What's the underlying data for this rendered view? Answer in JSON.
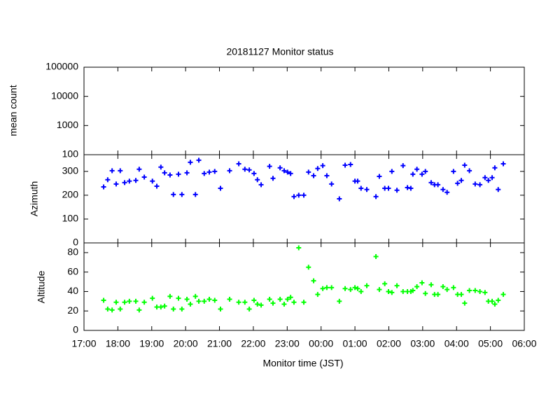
{
  "chart_data": [
    {
      "type": "scatter",
      "title": "20181127 Monitor status",
      "ylabel": "mean count",
      "log": true,
      "ylim": [
        100,
        100000
      ],
      "yticks": [
        100,
        1000,
        10000,
        100000
      ]
    },
    {
      "type": "scatter",
      "ylabel": "Azimuth",
      "color": "#0000ff",
      "ylim": [
        0,
        370
      ],
      "yticks": [
        0,
        100,
        200,
        300
      ],
      "x": [
        17.58,
        17.7,
        17.83,
        17.95,
        18.07,
        18.2,
        18.34,
        18.53,
        18.63,
        18.78,
        19.02,
        19.15,
        19.27,
        19.38,
        19.54,
        19.64,
        19.79,
        19.89,
        20.04,
        20.14,
        20.29,
        20.39,
        20.55,
        20.7,
        20.86,
        21.03,
        21.3,
        21.57,
        21.75,
        21.88,
        22.02,
        22.12,
        22.23,
        22.48,
        22.58,
        22.79,
        22.91,
        23.01,
        23.1,
        23.2,
        23.34,
        23.49,
        23.63,
        23.78,
        23.9,
        24.05,
        24.17,
        24.31,
        24.54,
        24.71,
        24.87,
        25.0,
        25.08,
        25.18,
        25.35,
        25.62,
        25.72,
        25.88,
        25.99,
        26.09,
        26.24,
        26.42,
        26.55,
        26.65,
        26.71,
        26.83,
        26.98,
        27.08,
        27.25,
        27.35,
        27.45,
        27.6,
        27.72,
        27.91,
        28.03,
        28.14,
        28.24,
        28.38,
        28.55,
        28.69,
        28.84,
        28.94,
        29.05,
        29.13,
        29.23,
        29.38
      ],
      "values": [
        235,
        265,
        303,
        247,
        303,
        253,
        259,
        262,
        309,
        276,
        259,
        238,
        318,
        294,
        285,
        203,
        288,
        203,
        294,
        338,
        203,
        347,
        291,
        297,
        300,
        229,
        303,
        332,
        309,
        306,
        291,
        265,
        244,
        321,
        271,
        315,
        303,
        297,
        291,
        194,
        200,
        200,
        297,
        282,
        312,
        324,
        282,
        247,
        185,
        326,
        329,
        259,
        259,
        229,
        224,
        194,
        279,
        229,
        229,
        300,
        221,
        324,
        232,
        229,
        288,
        309,
        288,
        300,
        253,
        244,
        244,
        224,
        212,
        300,
        250,
        262,
        326,
        303,
        247,
        244,
        274,
        262,
        274,
        315,
        224,
        332
      ]
    },
    {
      "type": "scatter",
      "ylabel": "Altitude",
      "color": "#00ff00",
      "ylim": [
        0,
        90
      ],
      "yticks": [
        0,
        20,
        40,
        60,
        80
      ],
      "xlabel": "Monitor time (JST)",
      "xlim": [
        17,
        30
      ],
      "xticks": [
        {
          "value": 17,
          "label": "17:00"
        },
        {
          "value": 18,
          "label": "18:00"
        },
        {
          "value": 19,
          "label": "19:00"
        },
        {
          "value": 20,
          "label": "20:00"
        },
        {
          "value": 21,
          "label": "21:00"
        },
        {
          "value": 22,
          "label": "22:00"
        },
        {
          "value": 23,
          "label": "23:00"
        },
        {
          "value": 24,
          "label": "00:00"
        },
        {
          "value": 25,
          "label": "01:00"
        },
        {
          "value": 26,
          "label": "02:00"
        },
        {
          "value": 27,
          "label": "03:00"
        },
        {
          "value": 28,
          "label": "04:00"
        },
        {
          "value": 29,
          "label": "05:00"
        },
        {
          "value": 30,
          "label": "06:00"
        }
      ],
      "x": [
        17.58,
        17.7,
        17.83,
        17.95,
        18.07,
        18.2,
        18.34,
        18.53,
        18.63,
        18.78,
        19.02,
        19.15,
        19.27,
        19.38,
        19.54,
        19.64,
        19.79,
        19.89,
        20.04,
        20.14,
        20.29,
        20.39,
        20.55,
        20.7,
        20.86,
        21.03,
        21.3,
        21.57,
        21.75,
        21.88,
        22.02,
        22.12,
        22.23,
        22.48,
        22.58,
        22.79,
        22.91,
        23.01,
        23.1,
        23.2,
        23.34,
        23.49,
        23.63,
        23.78,
        23.9,
        24.05,
        24.17,
        24.31,
        24.54,
        24.71,
        24.87,
        25.0,
        25.08,
        25.18,
        25.35,
        25.62,
        25.72,
        25.88,
        25.99,
        26.09,
        26.24,
        26.42,
        26.55,
        26.65,
        26.71,
        26.83,
        26.98,
        27.08,
        27.25,
        27.35,
        27.45,
        27.6,
        27.72,
        27.91,
        28.03,
        28.14,
        28.24,
        28.38,
        28.55,
        28.69,
        28.84,
        28.94,
        29.05,
        29.13,
        29.23,
        29.38
      ],
      "values": [
        31,
        22,
        21,
        29,
        22,
        29,
        30,
        30,
        21,
        29,
        33,
        24,
        24,
        25,
        35,
        22,
        33,
        22,
        32,
        27,
        35,
        30,
        30,
        32,
        31,
        22,
        32,
        29,
        29,
        22,
        31,
        27,
        26,
        32,
        28,
        32,
        27,
        32,
        34,
        29,
        85,
        29,
        65,
        51,
        37,
        43,
        44,
        44,
        30,
        43,
        42,
        44,
        43,
        40,
        46,
        76,
        42,
        48,
        40,
        39,
        46,
        40,
        40,
        40,
        41,
        45,
        49,
        38,
        47,
        37,
        37,
        45,
        42,
        44,
        37,
        37,
        28,
        41,
        41,
        40,
        39,
        30,
        30,
        27,
        31,
        37
      ]
    }
  ]
}
